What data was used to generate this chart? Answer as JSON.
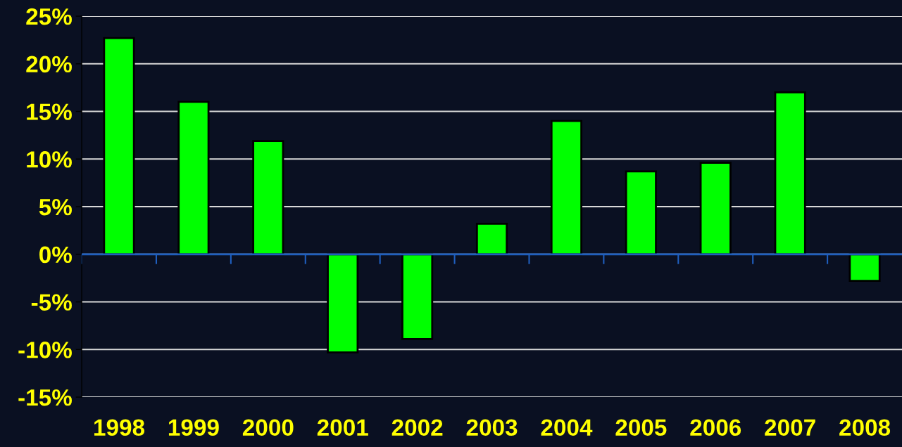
{
  "chart_data": {
    "type": "bar",
    "categories": [
      "1998",
      "1999",
      "2000",
      "2001",
      "2002",
      "2003",
      "2004",
      "2005",
      "2006",
      "2007",
      "2008"
    ],
    "values": [
      22.7,
      16.0,
      11.9,
      -10.3,
      -8.9,
      3.2,
      14.0,
      8.7,
      9.6,
      17.0,
      -2.8
    ],
    "color": "#00ff00",
    "ylim": [
      -15,
      25
    ],
    "yticks": [
      {
        "value": -15,
        "label": "-15%"
      },
      {
        "value": -10,
        "label": "-10%"
      },
      {
        "value": -5,
        "label": "-5%"
      },
      {
        "value": 0,
        "label": "0%"
      },
      {
        "value": 5,
        "label": "5%"
      },
      {
        "value": 10,
        "label": "10%"
      },
      {
        "value": 15,
        "label": "15%"
      },
      {
        "value": 20,
        "label": "20%"
      },
      {
        "value": 25,
        "label": "25%"
      }
    ],
    "grid": "y",
    "ref_lines": [
      {
        "axis": "y",
        "value": 0,
        "color": "#1f5fbf",
        "line_style": "solid"
      }
    ]
  }
}
